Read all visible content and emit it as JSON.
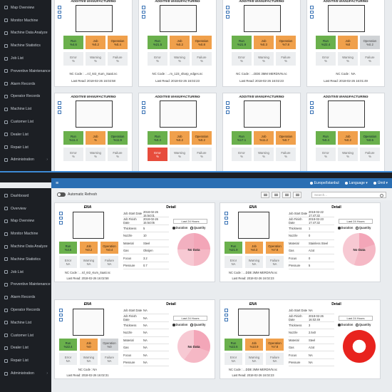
{
  "top_sidebar": [
    "Map Overview",
    "Monitor Machine",
    "Machine Data Analyze",
    "Machine Statistics",
    "Job List",
    "Preventive Maintenance",
    "Alarm Records",
    "Operator Records",
    "Machine List",
    "Customer List",
    "Dealer List",
    "Repair List",
    "Administration"
  ],
  "bottom_sidebar": [
    "Dashboard",
    "Overview",
    "Map Overview",
    "Monitor Machine",
    "Machine Data Analyze",
    "Machine Statistics",
    "Job List",
    "Preventive Maintenance",
    "Alarm Records",
    "Operator Records",
    "Machine List",
    "Customer List",
    "Dealer List",
    "Repair List",
    "Administration"
  ],
  "topbar": {
    "menu": "≡",
    "timezone": "Europe/Istanbul",
    "language": "Language ▾",
    "user": "Ümit ▾"
  },
  "toolbar": {
    "auto_refresh": "Automatic Refresh",
    "search_placeholder": "Search..."
  },
  "top_cards": [
    {
      "title": "ADDITIVE MANUFACTURING",
      "run": "Run\n%4.6",
      "job": "Job\n%0.2",
      "op": "Operation\n%0.4",
      "error": "Error\n%",
      "warning": "Warning\n%",
      "failure": "Failure\n%",
      "nc": "NC Code : ...rcl_6r2_Kum_Saati.nc",
      "last": "Last Read: 2018-02-26 16:02:58"
    },
    {
      "title": "ADDITIVE MANUFACTURING",
      "run": "Run\n%21.5",
      "job": "Job\n%0.2",
      "op": "Operation\n%0.8",
      "error": "Error\n%",
      "warning": "Warning\n%",
      "failure": "Failure\n%",
      "nc": "NC Code : ...m_123_sharp_edges.nc",
      "last": "Last Read: 2018-02-26 16:02:23"
    },
    {
      "title": "ADDITIVE MANUFACTURING",
      "run": "Run\n%21.9",
      "job": "Job\n%0.3",
      "op": "Operation\n%7.8",
      "error": "Error\n%",
      "warning": "Warning\n%",
      "failure": "Failure\n%",
      "nc": "NC Code : ...DDE 3MM MERDIVN.nc",
      "last": "Last Read: 2018-02-26 16:02:23"
    },
    {
      "title": "ADDITIVE MANUFACTURING",
      "run": "Run\n%22.4",
      "job": "Job\n%0",
      "op": "Operation\n%0.2",
      "error": "Error\n%",
      "warning": "Warning\n%",
      "failure": "Failure\n%",
      "nc": "NC Code : NA",
      "last": "Last Read: 2018-02-26 16:01:49"
    },
    {
      "title": "ADDITIVE MANUFACTURING",
      "run": "Run\n%11.4",
      "job": "Job\n%",
      "op": "Operation\n%11.9",
      "error": "Error\n%",
      "warning": "Warning\n%",
      "failure": "Failure\n%",
      "nc": "",
      "last": ""
    },
    {
      "title": "ADDITIVE MANUFACTURING",
      "run": "Run\n%0.4",
      "job": "Job\n%0.2",
      "op": "Operation\n%0.2",
      "error": "Error\n%",
      "warning": "Warning\n%",
      "failure": "Failure\n%",
      "nc": "",
      "last": ""
    },
    {
      "title": "ADDITIVE MANUFACTURING",
      "run": "Run\n%17.1",
      "job": "Job\n%11.2",
      "op": "Operation\n%0.7",
      "error": "Error\n%",
      "warning": "Warning\n%",
      "failure": "Failure\n%",
      "nc": "",
      "last": ""
    },
    {
      "title": "ADDITIVE MANUFACTURING",
      "run": "Run\n%0.4",
      "job": "Job\n%0.2",
      "op": "Operation\n%0.6",
      "error": "Error\n%",
      "warning": "Warning\n%",
      "failure": "Failure\n%",
      "nc": "",
      "last": ""
    }
  ],
  "detail_cards": [
    {
      "name": "ENA",
      "detail": "Detail",
      "run": "Run\n%4.6",
      "job": "Job\n%0.2",
      "op": "Operation\n%0.4",
      "error": "Error\nNA",
      "warning": "Warning\nNA",
      "failure": "Failure\nNA",
      "nc": "NC Code : ...rcl_6r2_Kum_Saati.nc",
      "last": "Last Read: 2018-02-26 16:02:58",
      "rows": [
        [
          "Job Start Date",
          "2018-02-26 15:54:01"
        ],
        [
          "Job Finish Date",
          "2018-02-26 15:54:05"
        ],
        [
          "Thickness",
          "5"
        ],
        [
          "Nozzle",
          "10"
        ],
        [
          "Material",
          "Steel"
        ],
        [
          "Gas",
          "Oksijen"
        ],
        [
          "Focus",
          "3.2"
        ],
        [
          "Pressure",
          "0.7"
        ]
      ],
      "period": "Last 24 Hours",
      "duration": "Duration",
      "quantity": "Quantity",
      "pie_label": "No Data"
    },
    {
      "name": "ENA",
      "detail": "Detail",
      "run": "Run\n%21.9",
      "job": "Job\n%0.3",
      "op": "Operation\n%7.8",
      "error": "Error\nNA",
      "warning": "Warning\nNA",
      "failure": "Failure\nNA",
      "nc": "NC Code : ...DDE 3MM MERDIVN.nc",
      "last": "Last Read: 2018-02-26 16:02:23",
      "rows": [
        [
          "Job Start Date",
          "2018-02-22 17:47:32"
        ],
        [
          "Job Finish Date",
          "2018-02-23 17:47:32"
        ],
        [
          "Thickness",
          "1"
        ],
        [
          "Nozzle",
          "0"
        ],
        [
          "Material",
          "Stainless Steel"
        ],
        [
          "Gas",
          "Azot"
        ],
        [
          "Focus",
          "0"
        ],
        [
          "Pressure",
          "5"
        ]
      ],
      "period": "Last 24 Hours",
      "duration": "Duration",
      "quantity": "Quantity",
      "pie_label": "No Data"
    },
    {
      "name": "ENA",
      "detail": "Detail",
      "run": "Run\n%22.4",
      "job": "Job\n%0",
      "op": "Operation\n%0",
      "error": "Error\nNA",
      "warning": "Warning\nNA",
      "failure": "Failure\nNA",
      "nc": "NC Code : NA",
      "last": "Last Read: 2018-02-26 16:02:31",
      "rows": [
        [
          "Job Start Date",
          "NA"
        ],
        [
          "Job Finish Date",
          "NA"
        ],
        [
          "Thickness",
          "NA"
        ],
        [
          "Nozzle",
          "NA"
        ],
        [
          "Material",
          "NA"
        ],
        [
          "Gas",
          "NA"
        ],
        [
          "Focus",
          "NA"
        ],
        [
          "Pressure",
          "NA"
        ]
      ],
      "period": "Last 24 Hours",
      "duration": "Duration",
      "quantity": "Quantity",
      "pie_label": "No Data"
    },
    {
      "name": "ENA",
      "detail": "Detail",
      "run": "Run\n%22.6",
      "job": "Job\n%10.9",
      "op": "Operation\n%7.8",
      "error": "Error\nNA",
      "warning": "Warning\nNA",
      "failure": "Failure\nNA",
      "nc": "NC Code : ...DDE 3MM MERDIVN.nc",
      "last": "Last Read: 2018-02-26 16:02:23",
      "rows": [
        [
          "Job Start Date",
          "NA"
        ],
        [
          "Job Finish Date",
          "2018-02-26 16:02:49"
        ],
        [
          "Thickness",
          "3"
        ],
        [
          "Nozzle",
          "2.5x0"
        ],
        [
          "Material",
          "Steel"
        ],
        [
          "Gas",
          "Azot"
        ],
        [
          "Focus",
          "NA"
        ],
        [
          "Pressure",
          "NA"
        ]
      ],
      "period": "Last 24 Hours",
      "duration": "Duration",
      "quantity": "Quantity",
      "pie_label": ""
    }
  ],
  "colors": {
    "ok": "#6ab04c",
    "job": "#f0a04b",
    "error": "#e74c3c",
    "accent": "#2b6fb3"
  }
}
